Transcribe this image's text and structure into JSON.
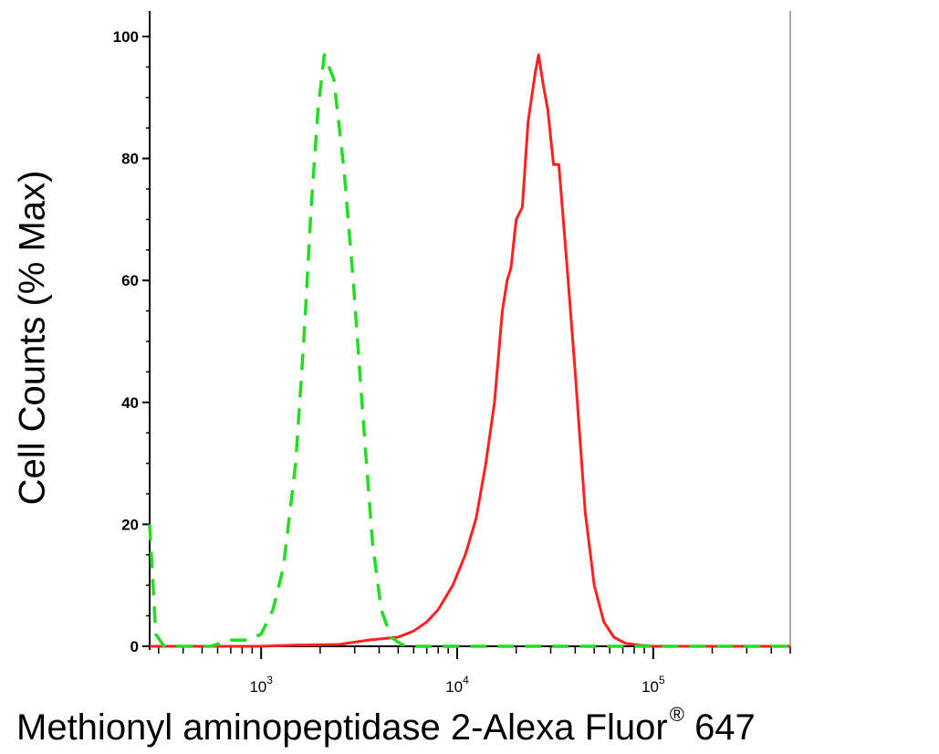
{
  "chart_data": {
    "type": "line",
    "xlabel": "Methionyl aminopeptidase 2-Alexa Fluor",
    "xlabel_sup": "®",
    "xlabel_suffix": "647",
    "ylabel": "Cell Counts (% Max)",
    "x_scale": "log",
    "xlim": [
      270,
      500000
    ],
    "ylim": [
      0,
      100
    ],
    "y_ticks": [
      0,
      20,
      40,
      60,
      80,
      100
    ],
    "x_major_ticks": [
      {
        "value": 1000,
        "base": "10",
        "exp": "3"
      },
      {
        "value": 10000,
        "base": "10",
        "exp": "4"
      },
      {
        "value": 100000,
        "base": "10",
        "exp": "5"
      }
    ],
    "grid": false,
    "series": [
      {
        "color": "#ff2020",
        "style": "solid",
        "points": [
          [
            270,
            0
          ],
          [
            1000,
            0
          ],
          [
            1500,
            0.2
          ],
          [
            2500,
            0.3
          ],
          [
            3500,
            1
          ],
          [
            5000,
            1.5
          ],
          [
            6000,
            2.5
          ],
          [
            7000,
            4
          ],
          [
            8000,
            6
          ],
          [
            9500,
            10
          ],
          [
            11000,
            15
          ],
          [
            12500,
            21
          ],
          [
            14000,
            30
          ],
          [
            15500,
            40
          ],
          [
            17000,
            55
          ],
          [
            18000,
            60
          ],
          [
            18800,
            62
          ],
          [
            20000,
            70
          ],
          [
            21500,
            72
          ],
          [
            23000,
            86
          ],
          [
            25000,
            94
          ],
          [
            26000,
            97
          ],
          [
            27500,
            92
          ],
          [
            29000,
            88
          ],
          [
            31000,
            79
          ],
          [
            33000,
            79
          ],
          [
            36000,
            64
          ],
          [
            40000,
            45
          ],
          [
            45000,
            22
          ],
          [
            50000,
            10
          ],
          [
            56000,
            4
          ],
          [
            63000,
            1.5
          ],
          [
            72000,
            0.5
          ],
          [
            85000,
            0.2
          ],
          [
            100000,
            0
          ],
          [
            500000,
            0
          ]
        ]
      },
      {
        "color": "#22dd22",
        "style": "dashed",
        "points": [
          [
            270,
            20
          ],
          [
            290,
            2
          ],
          [
            320,
            0
          ],
          [
            550,
            0
          ],
          [
            700,
            1
          ],
          [
            850,
            1
          ],
          [
            1000,
            2
          ],
          [
            1150,
            6
          ],
          [
            1300,
            13
          ],
          [
            1500,
            30
          ],
          [
            1650,
            50
          ],
          [
            1800,
            72
          ],
          [
            1950,
            88
          ],
          [
            2100,
            97
          ],
          [
            2350,
            93
          ],
          [
            2650,
            78
          ],
          [
            2950,
            60
          ],
          [
            3300,
            38
          ],
          [
            3700,
            17
          ],
          [
            4100,
            6
          ],
          [
            4600,
            1.5
          ],
          [
            5200,
            0.3
          ],
          [
            6000,
            0
          ],
          [
            500000,
            0
          ]
        ]
      }
    ]
  }
}
